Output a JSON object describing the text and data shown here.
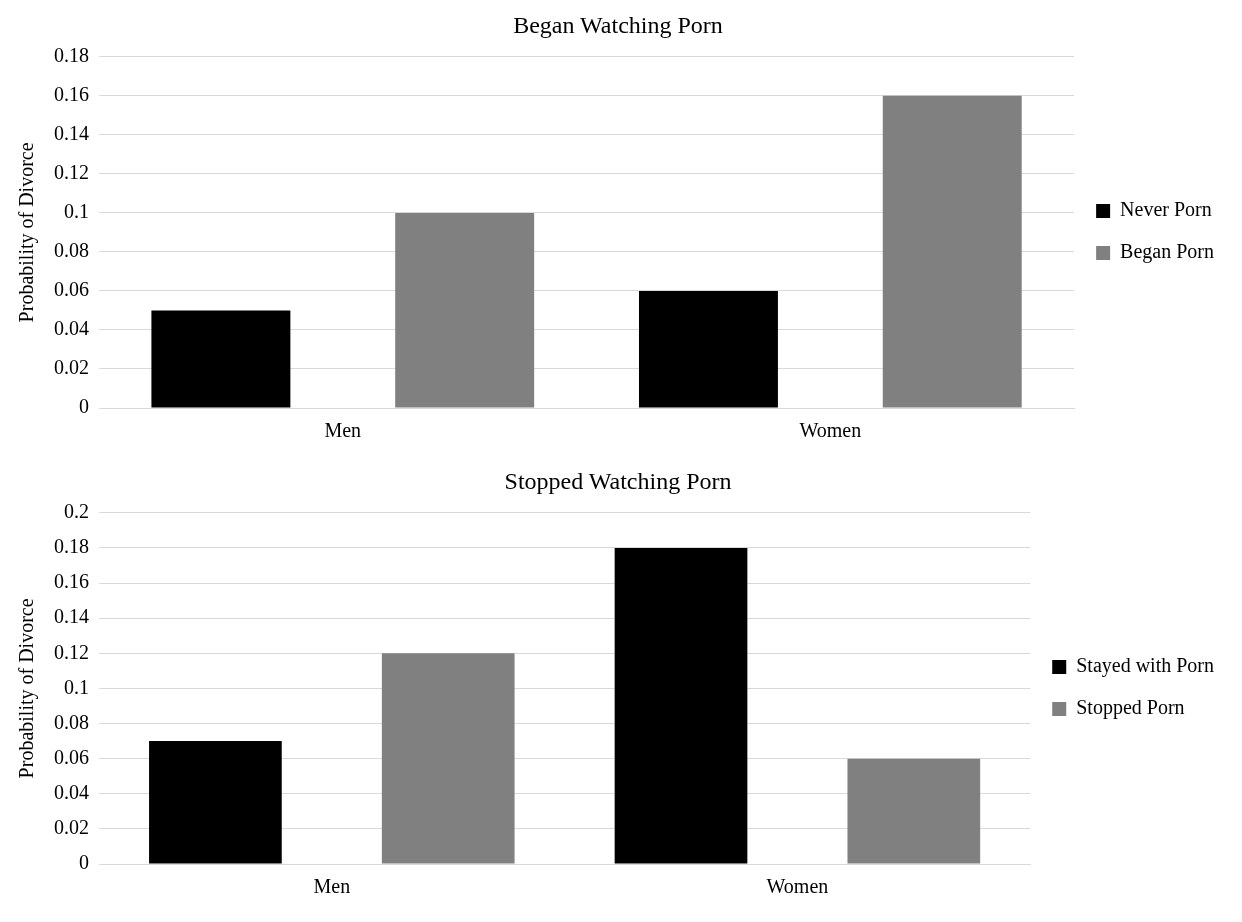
{
  "chart_data": [
    {
      "type": "bar",
      "title": "Began Watching Porn",
      "ylabel": "Probability of Divorce",
      "categories": [
        "Men",
        "Women"
      ],
      "series": [
        {
          "name": "Never Porn",
          "color": "#000000",
          "values": [
            0.05,
            0.06
          ]
        },
        {
          "name": "Began Porn",
          "color": "#808080",
          "values": [
            0.1,
            0.16
          ]
        }
      ],
      "ylim": [
        0,
        0.18
      ],
      "yticks": [
        0,
        0.02,
        0.04,
        0.06,
        0.08,
        0.1,
        0.12,
        0.14,
        0.16,
        0.18
      ],
      "grid": "y",
      "legend": "right"
    },
    {
      "type": "bar",
      "title": "Stopped Watching Porn",
      "ylabel": "Probability of Divorce",
      "categories": [
        "Men",
        "Women"
      ],
      "series": [
        {
          "name": "Stayed with Porn",
          "color": "#000000",
          "values": [
            0.07,
            0.18
          ]
        },
        {
          "name": "Stopped Porn",
          "color": "#808080",
          "values": [
            0.12,
            0.06
          ]
        }
      ],
      "ylim": [
        0,
        0.2
      ],
      "yticks": [
        0,
        0.02,
        0.04,
        0.06,
        0.08,
        0.1,
        0.12,
        0.14,
        0.16,
        0.18,
        0.2
      ],
      "grid": "y",
      "legend": "right"
    }
  ]
}
